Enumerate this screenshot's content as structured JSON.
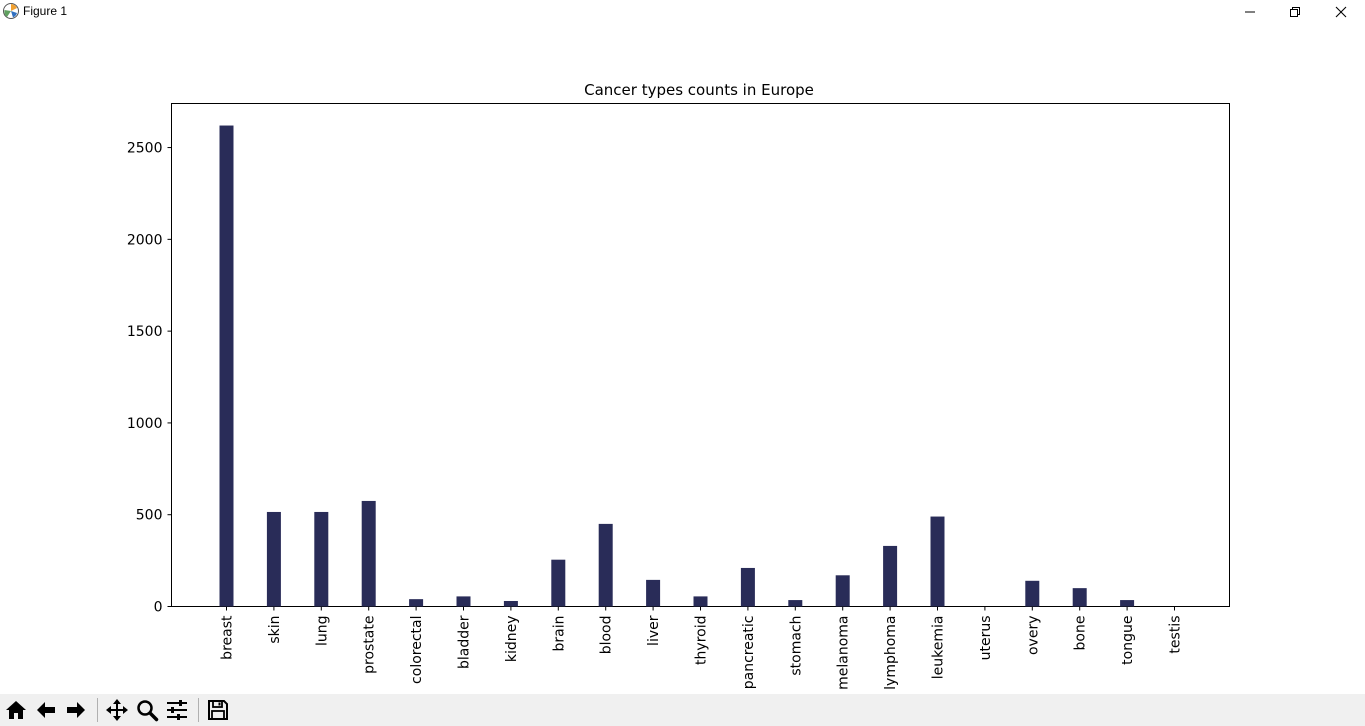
{
  "window": {
    "title": "Figure 1"
  },
  "chart_data": {
    "type": "bar",
    "title": "Cancer types counts in Europe",
    "xlabel": "",
    "ylabel": "",
    "categories": [
      "breast",
      "skin",
      "lung",
      "prostate",
      "colorectal",
      "bladder",
      "kidney",
      "brain",
      "blood",
      "liver",
      "thyroid",
      "pancreatic",
      "stomach",
      "melanoma",
      "lymphoma",
      "leukemia",
      "uterus",
      "overy",
      "bone",
      "tongue",
      "testis"
    ],
    "values": [
      2620,
      515,
      515,
      575,
      40,
      55,
      30,
      255,
      450,
      145,
      55,
      210,
      35,
      170,
      330,
      490,
      0,
      140,
      100,
      35,
      0
    ],
    "yticks": [
      0,
      500,
      1000,
      1500,
      2000,
      2500
    ],
    "ylim": [
      0,
      2740
    ],
    "grid": false,
    "bar_color": "#292c58"
  },
  "toolbar": {
    "items": [
      "home-icon",
      "back-icon",
      "forward-icon",
      "pan-icon",
      "zoom-icon",
      "configure-icon",
      "save-icon"
    ]
  }
}
